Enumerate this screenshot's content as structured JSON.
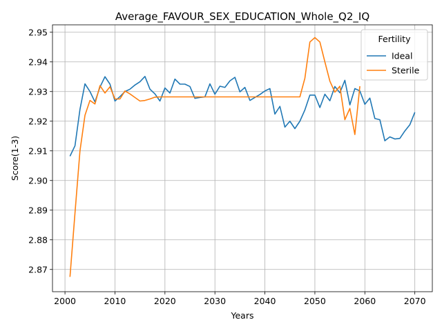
{
  "chart_data": {
    "type": "line",
    "title": "Average_FAVOUR_SEX_EDUCATION_Whole_Q2_IQ",
    "xlabel": "Years",
    "ylabel": "Score(1-3)",
    "xlim": [
      1997.5,
      2073.5
    ],
    "ylim": [
      2.8625,
      2.9525
    ],
    "xticks": [
      2000,
      2010,
      2020,
      2030,
      2040,
      2050,
      2060,
      2070
    ],
    "yticks": [
      2.87,
      2.88,
      2.89,
      2.9,
      2.91,
      2.92,
      2.93,
      2.94,
      2.95
    ],
    "ytick_labels": [
      "2.87",
      "2.88",
      "2.89",
      "2.90",
      "2.91",
      "2.92",
      "2.93",
      "2.94",
      "2.95"
    ],
    "grid": true,
    "legend": {
      "title": "Fertility",
      "placement": "top-right"
    },
    "series": [
      {
        "name": "Ideal",
        "color": "#1f77b4",
        "x": [
          2001,
          2002,
          2003,
          2004,
          2005,
          2006,
          2007,
          2008,
          2009,
          2010,
          2011,
          2012,
          2013,
          2014,
          2015,
          2016,
          2017,
          2018,
          2019,
          2020,
          2021,
          2022,
          2023,
          2024,
          2025,
          2026,
          2027,
          2028,
          2029,
          2030,
          2031,
          2032,
          2033,
          2034,
          2035,
          2036,
          2037,
          2038,
          2039,
          2040,
          2041,
          2042,
          2043,
          2044,
          2045,
          2046,
          2047,
          2048,
          2049,
          2050,
          2051,
          2052,
          2053,
          2054,
          2055,
          2056,
          2057,
          2058,
          2059,
          2060,
          2061,
          2062,
          2063,
          2064,
          2065,
          2066,
          2067,
          2068,
          2069,
          2070
        ],
        "values": [
          2.9082,
          2.9117,
          2.924,
          2.9326,
          2.93,
          2.9265,
          2.9315,
          2.935,
          2.9325,
          2.9268,
          2.9283,
          2.93,
          2.9308,
          2.9322,
          2.9333,
          2.9351,
          2.9308,
          2.9292,
          2.9268,
          2.9312,
          2.9295,
          2.9342,
          2.9325,
          2.9325,
          2.9317,
          2.9277,
          2.928,
          2.9282,
          2.9326,
          2.9291,
          2.9318,
          2.9314,
          2.9336,
          2.9348,
          2.9299,
          2.9314,
          2.927,
          2.928,
          2.929,
          2.9302,
          2.931,
          2.9224,
          2.925,
          2.918,
          2.92,
          2.9175,
          2.92,
          2.9238,
          2.9288,
          2.9288,
          2.9246,
          2.9291,
          2.9269,
          2.9317,
          2.9296,
          2.9338,
          2.9255,
          2.931,
          2.9302,
          2.9257,
          2.9278,
          2.9209,
          2.9205,
          2.9134,
          2.9147,
          2.914,
          2.9142,
          2.9167,
          2.9188,
          2.923
        ]
      },
      {
        "name": "Sterile",
        "color": "#ff7f0e",
        "x": [
          2001,
          2002,
          2003,
          2004,
          2005,
          2006,
          2007,
          2008,
          2009,
          2010,
          2011,
          2012,
          2013,
          2014,
          2015,
          2016,
          2017,
          2018,
          2019,
          2020,
          2021,
          2022,
          2023,
          2024,
          2025,
          2026,
          2027,
          2028,
          2029,
          2030,
          2031,
          2032,
          2033,
          2034,
          2035,
          2036,
          2037,
          2038,
          2039,
          2040,
          2041,
          2042,
          2043,
          2044,
          2045,
          2046,
          2047,
          2048,
          2049,
          2050,
          2051,
          2052,
          2053,
          2054,
          2055,
          2056,
          2057,
          2058,
          2059
        ],
        "values": [
          2.8675,
          2.889,
          2.91,
          2.922,
          2.927,
          2.9258,
          2.932,
          2.9295,
          2.9316,
          2.9275,
          2.9275,
          2.9302,
          2.9292,
          2.928,
          2.9268,
          2.927,
          2.9275,
          2.9281,
          2.9282,
          2.9282,
          2.9282,
          2.9282,
          2.9282,
          2.9282,
          2.9282,
          2.9282,
          2.9282,
          2.9282,
          2.9282,
          2.9282,
          2.9282,
          2.9282,
          2.9282,
          2.9282,
          2.9282,
          2.9282,
          2.9282,
          2.9282,
          2.9282,
          2.9282,
          2.9282,
          2.9282,
          2.9282,
          2.9282,
          2.9282,
          2.9282,
          2.9282,
          2.9345,
          2.9467,
          2.9482,
          2.9467,
          2.94,
          2.9335,
          2.9298,
          2.9318,
          2.9205,
          2.9243,
          2.9155,
          2.9318
        ]
      }
    ]
  }
}
